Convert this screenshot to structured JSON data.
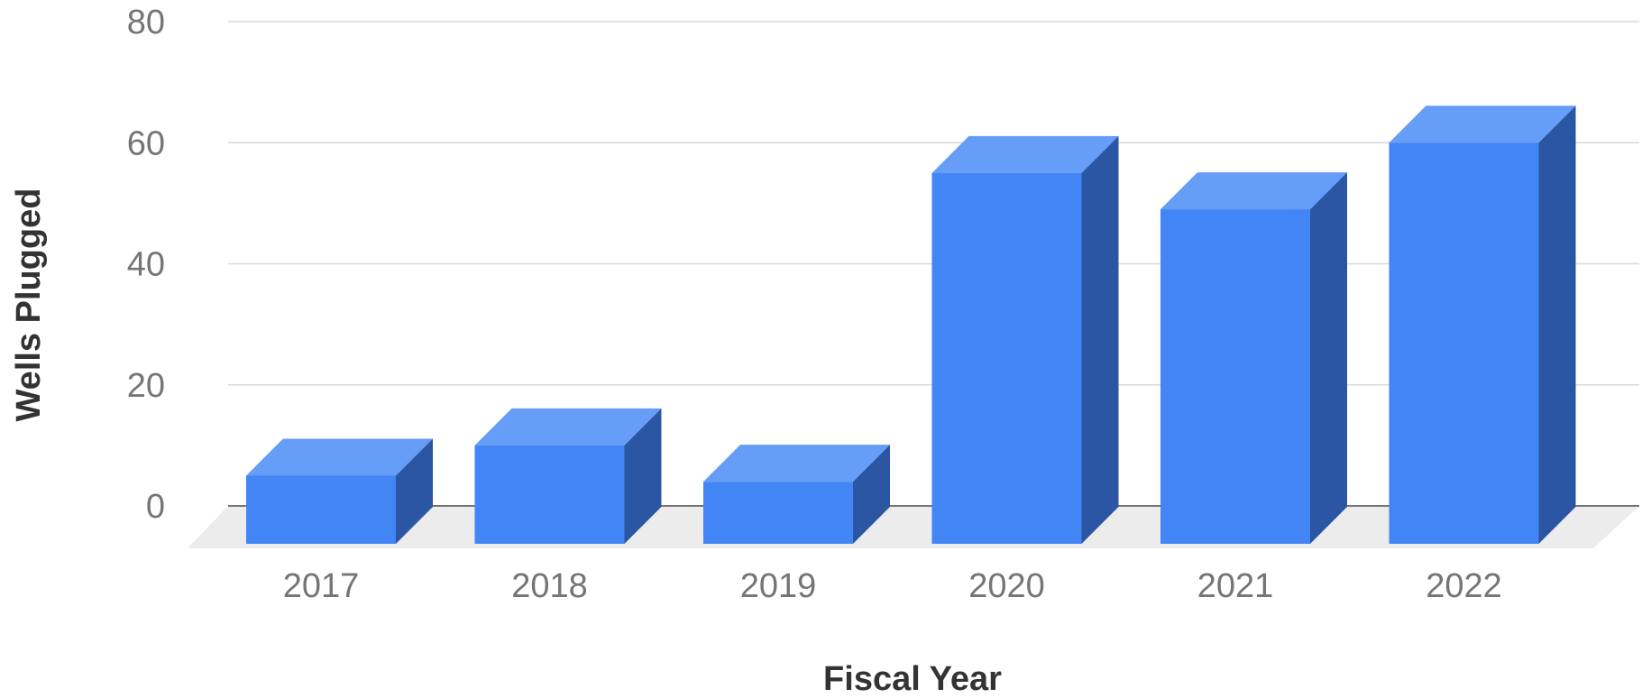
{
  "chart_data": {
    "type": "bar",
    "style": "3d",
    "categories": [
      "2017",
      "2018",
      "2019",
      "2020",
      "2021",
      "2022"
    ],
    "values": [
      5,
      10,
      4,
      55,
      49,
      60
    ],
    "xlabel": "Fiscal Year",
    "ylabel": "Wells Plugged",
    "ylim": [
      0,
      80
    ],
    "yticks": [
      0,
      20,
      40,
      60,
      80
    ],
    "grid": true,
    "legend": "none",
    "colors": {
      "bar_front": "#4285f4",
      "bar_top": "#669df6",
      "bar_side": "#2a56a3",
      "floor": "#ececec"
    }
  }
}
